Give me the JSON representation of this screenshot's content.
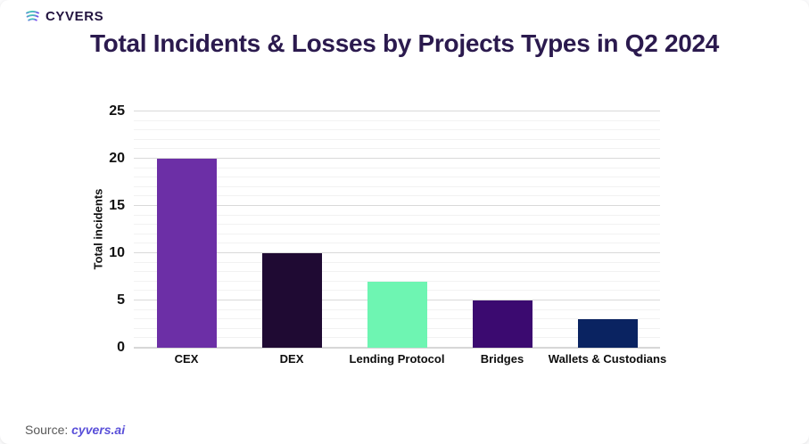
{
  "header": {
    "logo_text": "CYVERS"
  },
  "footer": {
    "source_label": "Source: ",
    "source_link": "cyvers.ai"
  },
  "colors": {
    "title_text": "#2b1a4e",
    "logo_text": "#231440",
    "tick_text": "#121212",
    "source_text": "#595959",
    "source_link": "#5a50d9",
    "logo_gradient_start": "#3ae0b0",
    "logo_gradient_end": "#7a4bf0",
    "gridline_major": "#d9d9d9",
    "gridline_minor": "#f2f2f2"
  },
  "chart_data": {
    "type": "bar",
    "title": "Total Incidents & Losses by Projects Types in Q2 2024",
    "categories": [
      "CEX",
      "DEX",
      "Lending Protocol",
      "Bridges",
      "Wallets & Custodians"
    ],
    "values": [
      20,
      10,
      7,
      5,
      3
    ],
    "bar_colors": [
      "#6c2fa6",
      "#1f0a33",
      "#6ef5b2",
      "#3b0a70",
      "#0a2361"
    ],
    "xlabel": "",
    "ylabel": "Total incidents",
    "ylim": [
      0,
      25
    ],
    "yticks": [
      0,
      5,
      10,
      15,
      20,
      25
    ],
    "minor_grid_step": 1,
    "grid": true,
    "legend": false
  }
}
